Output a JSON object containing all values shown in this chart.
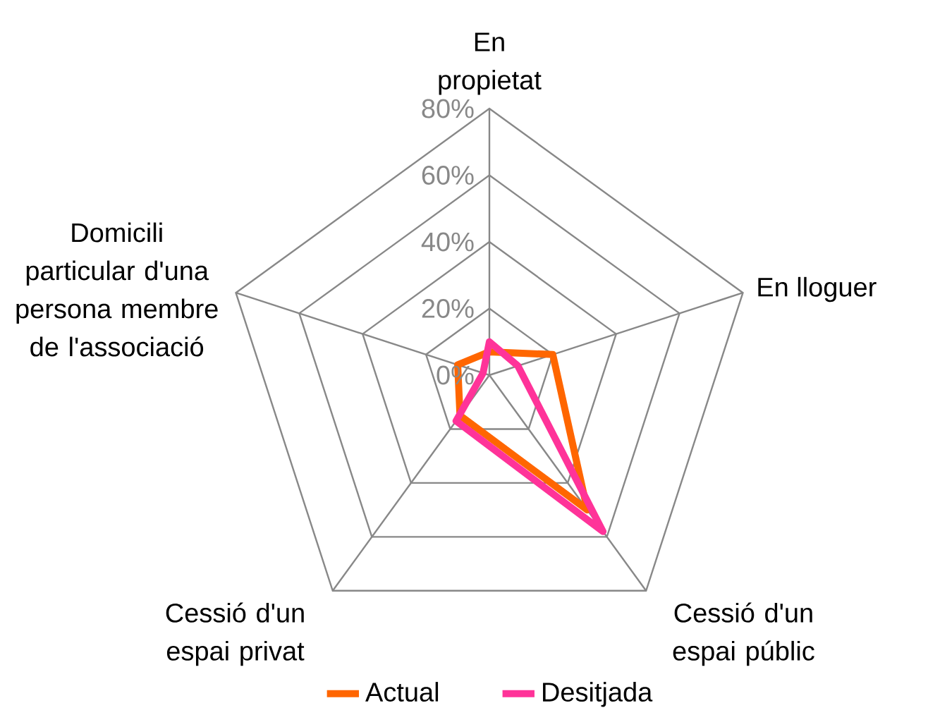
{
  "chart_data": {
    "type": "radar",
    "categories": [
      "En propietat",
      "En lloguer",
      "Cessió d'un espai públic",
      "Cessió d'un espai privat",
      "Domicili particular d'una persona membre de l'associació"
    ],
    "series": [
      {
        "name": "Actual",
        "color": "#ff6600",
        "values": [
          7,
          20,
          50,
          15,
          10
        ]
      },
      {
        "name": "Desitjada",
        "color": "#ff3399",
        "values": [
          10,
          9,
          58,
          17,
          2
        ]
      }
    ],
    "ylim": [
      0,
      80
    ],
    "yticks": [
      {
        "value": 0,
        "label": "0%"
      },
      {
        "value": 20,
        "label": "20%"
      },
      {
        "value": 40,
        "label": "40%"
      },
      {
        "value": 60,
        "label": "60%"
      },
      {
        "value": 80,
        "label": "80%"
      }
    ],
    "grid": true,
    "legend": "bottom"
  }
}
